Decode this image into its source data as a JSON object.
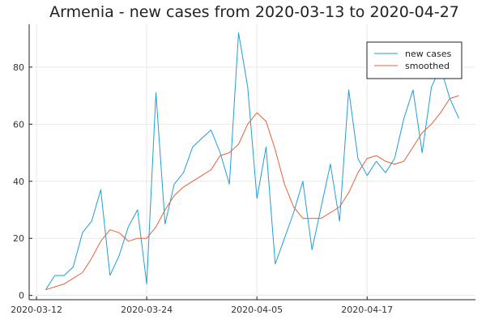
{
  "chart_data": {
    "type": "line",
    "title": "Armenia - new cases from 2020-03-13 to 2020-04-27",
    "xlabel": "",
    "ylabel": "",
    "x_start": "2020-03-13",
    "x_end": "2020-04-27",
    "x_ticks": [
      "2020-03-12",
      "2020-03-24",
      "2020-04-05",
      "2020-04-17"
    ],
    "y_ticks": [
      0,
      20,
      40,
      60,
      80
    ],
    "ylim": [
      0,
      95
    ],
    "grid": true,
    "legend_position": "top-right",
    "series": [
      {
        "name": "new cases",
        "color": "#1f9fd6",
        "values": [
          2,
          7,
          7,
          10,
          22,
          26,
          37,
          7,
          14,
          24,
          30,
          4,
          71,
          25,
          39,
          43,
          52,
          55,
          58,
          50,
          39,
          92,
          73,
          34,
          52,
          11,
          20,
          29,
          40,
          16,
          31,
          46,
          26,
          72,
          48,
          42,
          47,
          43,
          48,
          62,
          72,
          50,
          73,
          80,
          69,
          62
        ]
      },
      {
        "name": "smoothed",
        "color": "#e0643b",
        "values": [
          2,
          3,
          4,
          6,
          8,
          13,
          19,
          23,
          22,
          19,
          20,
          20,
          24,
          30,
          35,
          38,
          40,
          42,
          44,
          49,
          50,
          53,
          60,
          64,
          61,
          51,
          39,
          31,
          27,
          27,
          27,
          29,
          31,
          36,
          43,
          48,
          49,
          47,
          46,
          47,
          52,
          57,
          60,
          64,
          69,
          70
        ]
      }
    ]
  }
}
